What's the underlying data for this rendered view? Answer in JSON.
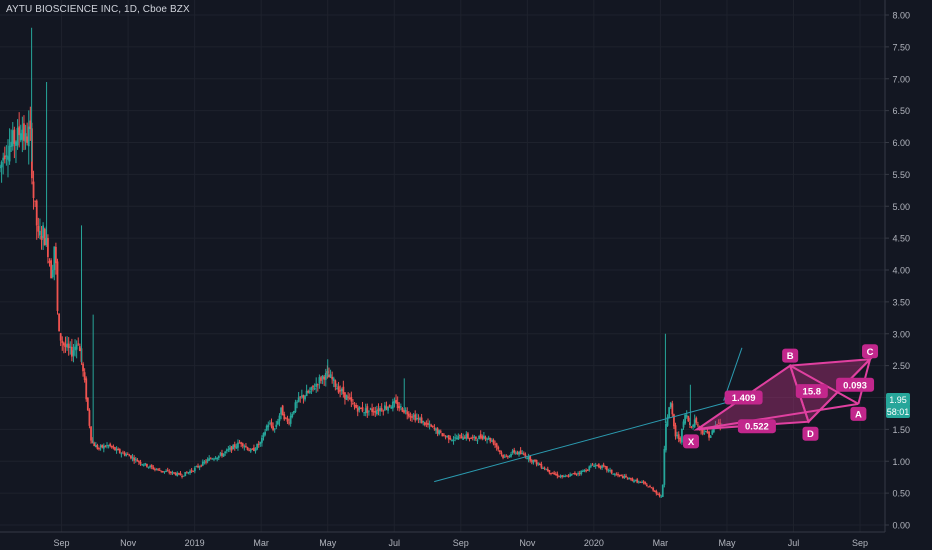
{
  "header": {
    "symbol_title": "AYTU BIOSCIENCE INC, 1D, Cboe BZX"
  },
  "colors": {
    "background": "#131722",
    "grid": "#1e222d",
    "axis_text": "#b2b5be",
    "up_candle": "#26a69a",
    "down_candle": "#ef5350",
    "pattern": "#e040a0",
    "pattern_fill": "#b0307a",
    "trendline": "#2b9bb0",
    "price_badge": "#26a69a"
  },
  "chart_data": {
    "type": "candlestick",
    "interval": "1D",
    "y_axis": {
      "ticks": [
        "8.00",
        "7.50",
        "7.00",
        "6.50",
        "6.00",
        "5.50",
        "5.00",
        "4.50",
        "4.00",
        "3.50",
        "3.00",
        "2.50",
        "2.00",
        "1.50",
        "1.00",
        "0.50",
        "0.00"
      ],
      "range": [
        -0.05,
        8.1
      ],
      "side": "right"
    },
    "x_axis": {
      "ticks": [
        {
          "label": "Sep",
          "t": 1.0
        },
        {
          "label": "Nov",
          "t": 3.0
        },
        {
          "label": "2019",
          "t": 5.0
        },
        {
          "label": "Mar",
          "t": 7.0
        },
        {
          "label": "May",
          "t": 9.0
        },
        {
          "label": "Jul",
          "t": 11.0
        },
        {
          "label": "Sep",
          "t": 13.0
        },
        {
          "label": "Nov",
          "t": 15.0
        },
        {
          "label": "2020",
          "t": 17.0
        },
        {
          "label": "Mar",
          "t": 19.0
        },
        {
          "label": "May",
          "t": 21.0
        },
        {
          "label": "Jul",
          "t": 23.0
        },
        {
          "label": "Sep",
          "t": 25.0
        }
      ],
      "range": [
        -0.85,
        25.75
      ],
      "unit": "months since Aug 2018"
    },
    "price_path": [
      [
        -0.85,
        5.6
      ],
      [
        -0.7,
        5.9
      ],
      [
        -0.5,
        6.0
      ],
      [
        -0.3,
        6.1
      ],
      [
        -0.2,
        6.3
      ],
      [
        -0.1,
        6.0
      ],
      [
        0.05,
        6.2
      ],
      [
        0.15,
        5.2
      ],
      [
        0.3,
        4.5
      ],
      [
        0.45,
        4.6
      ],
      [
        0.6,
        4.3
      ],
      [
        0.7,
        3.9
      ],
      [
        0.8,
        4.5
      ],
      [
        0.9,
        3.0
      ],
      [
        1.1,
        2.8
      ],
      [
        1.3,
        2.7
      ],
      [
        1.5,
        2.9
      ],
      [
        1.7,
        2.2
      ],
      [
        1.9,
        1.3
      ],
      [
        2.1,
        1.2
      ],
      [
        2.4,
        1.25
      ],
      [
        2.7,
        1.15
      ],
      [
        3.0,
        1.1
      ],
      [
        3.3,
        1.0
      ],
      [
        3.7,
        0.9
      ],
      [
        4.0,
        0.85
      ],
      [
        4.3,
        0.82
      ],
      [
        4.6,
        0.78
      ],
      [
        4.9,
        0.85
      ],
      [
        5.2,
        0.95
      ],
      [
        5.5,
        1.05
      ],
      [
        5.8,
        1.1
      ],
      [
        6.1,
        1.2
      ],
      [
        6.4,
        1.3
      ],
      [
        6.7,
        1.15
      ],
      [
        7.0,
        1.3
      ],
      [
        7.2,
        1.6
      ],
      [
        7.4,
        1.5
      ],
      [
        7.6,
        1.8
      ],
      [
        7.8,
        1.6
      ],
      [
        8.0,
        1.85
      ],
      [
        8.2,
        2.0
      ],
      [
        8.5,
        2.1
      ],
      [
        8.7,
        2.25
      ],
      [
        8.9,
        2.35
      ],
      [
        9.1,
        2.3
      ],
      [
        9.3,
        2.15
      ],
      [
        9.5,
        2.05
      ],
      [
        9.8,
        1.85
      ],
      [
        10.1,
        1.8
      ],
      [
        10.4,
        1.8
      ],
      [
        10.7,
        1.85
      ],
      [
        11.0,
        1.9
      ],
      [
        11.3,
        1.8
      ],
      [
        11.6,
        1.7
      ],
      [
        11.9,
        1.6
      ],
      [
        12.2,
        1.5
      ],
      [
        12.5,
        1.4
      ],
      [
        12.8,
        1.35
      ],
      [
        13.1,
        1.4
      ],
      [
        13.4,
        1.35
      ],
      [
        13.7,
        1.4
      ],
      [
        14.0,
        1.3
      ],
      [
        14.3,
        1.05
      ],
      [
        14.6,
        1.15
      ],
      [
        14.9,
        1.1
      ],
      [
        15.2,
        1.0
      ],
      [
        15.5,
        0.9
      ],
      [
        15.8,
        0.8
      ],
      [
        16.1,
        0.75
      ],
      [
        16.4,
        0.8
      ],
      [
        16.7,
        0.85
      ],
      [
        17.0,
        0.95
      ],
      [
        17.3,
        0.9
      ],
      [
        17.6,
        0.8
      ],
      [
        17.9,
        0.75
      ],
      [
        18.2,
        0.7
      ],
      [
        18.5,
        0.65
      ],
      [
        18.8,
        0.55
      ],
      [
        19.0,
        0.45
      ],
      [
        19.05,
        0.4
      ],
      [
        19.15,
        1.6
      ],
      [
        19.3,
        1.9
      ],
      [
        19.45,
        1.4
      ],
      [
        19.6,
        1.35
      ],
      [
        19.75,
        1.75
      ],
      [
        19.9,
        1.55
      ],
      [
        20.05,
        1.65
      ],
      [
        20.2,
        1.5
      ],
      [
        20.35,
        1.45
      ],
      [
        20.5,
        1.4
      ],
      [
        20.7,
        1.6
      ],
      [
        20.85,
        1.55
      ]
    ],
    "spikes": [
      {
        "t": 0.1,
        "high": 7.8
      },
      {
        "t": 0.55,
        "high": 6.95
      },
      {
        "t": 1.6,
        "high": 4.7
      },
      {
        "t": 1.95,
        "high": 3.3
      },
      {
        "t": 9.0,
        "high": 2.6
      },
      {
        "t": 11.3,
        "high": 2.3
      },
      {
        "t": 19.15,
        "high": 3.0
      },
      {
        "t": 19.9,
        "high": 2.2
      }
    ],
    "trendlines": [
      {
        "from": [
          12.2,
          0.68
        ],
        "to": [
          21.4,
          1.98
        ]
      },
      {
        "from": [
          20.9,
          1.95
        ],
        "to": [
          21.45,
          2.78
        ]
      }
    ],
    "harmonic_pattern": {
      "points": {
        "X": [
          20.1,
          1.5
        ],
        "B": [
          22.9,
          2.5
        ],
        "D": [
          23.45,
          1.62
        ],
        "C": [
          25.3,
          2.6
        ],
        "A": [
          24.95,
          1.9
        ]
      },
      "labels": [
        "X",
        "B",
        "D",
        "C",
        "A"
      ],
      "ratios": [
        {
          "text": "1.409",
          "at": [
            21.5,
            2.0
          ]
        },
        {
          "text": "0.522",
          "at": [
            21.9,
            1.55
          ]
        },
        {
          "text": "15.8",
          "at": [
            23.55,
            2.1
          ]
        },
        {
          "text": "0.093",
          "at": [
            24.85,
            2.2
          ]
        }
      ]
    },
    "last_price": "1.95",
    "countdown": "58:01"
  }
}
